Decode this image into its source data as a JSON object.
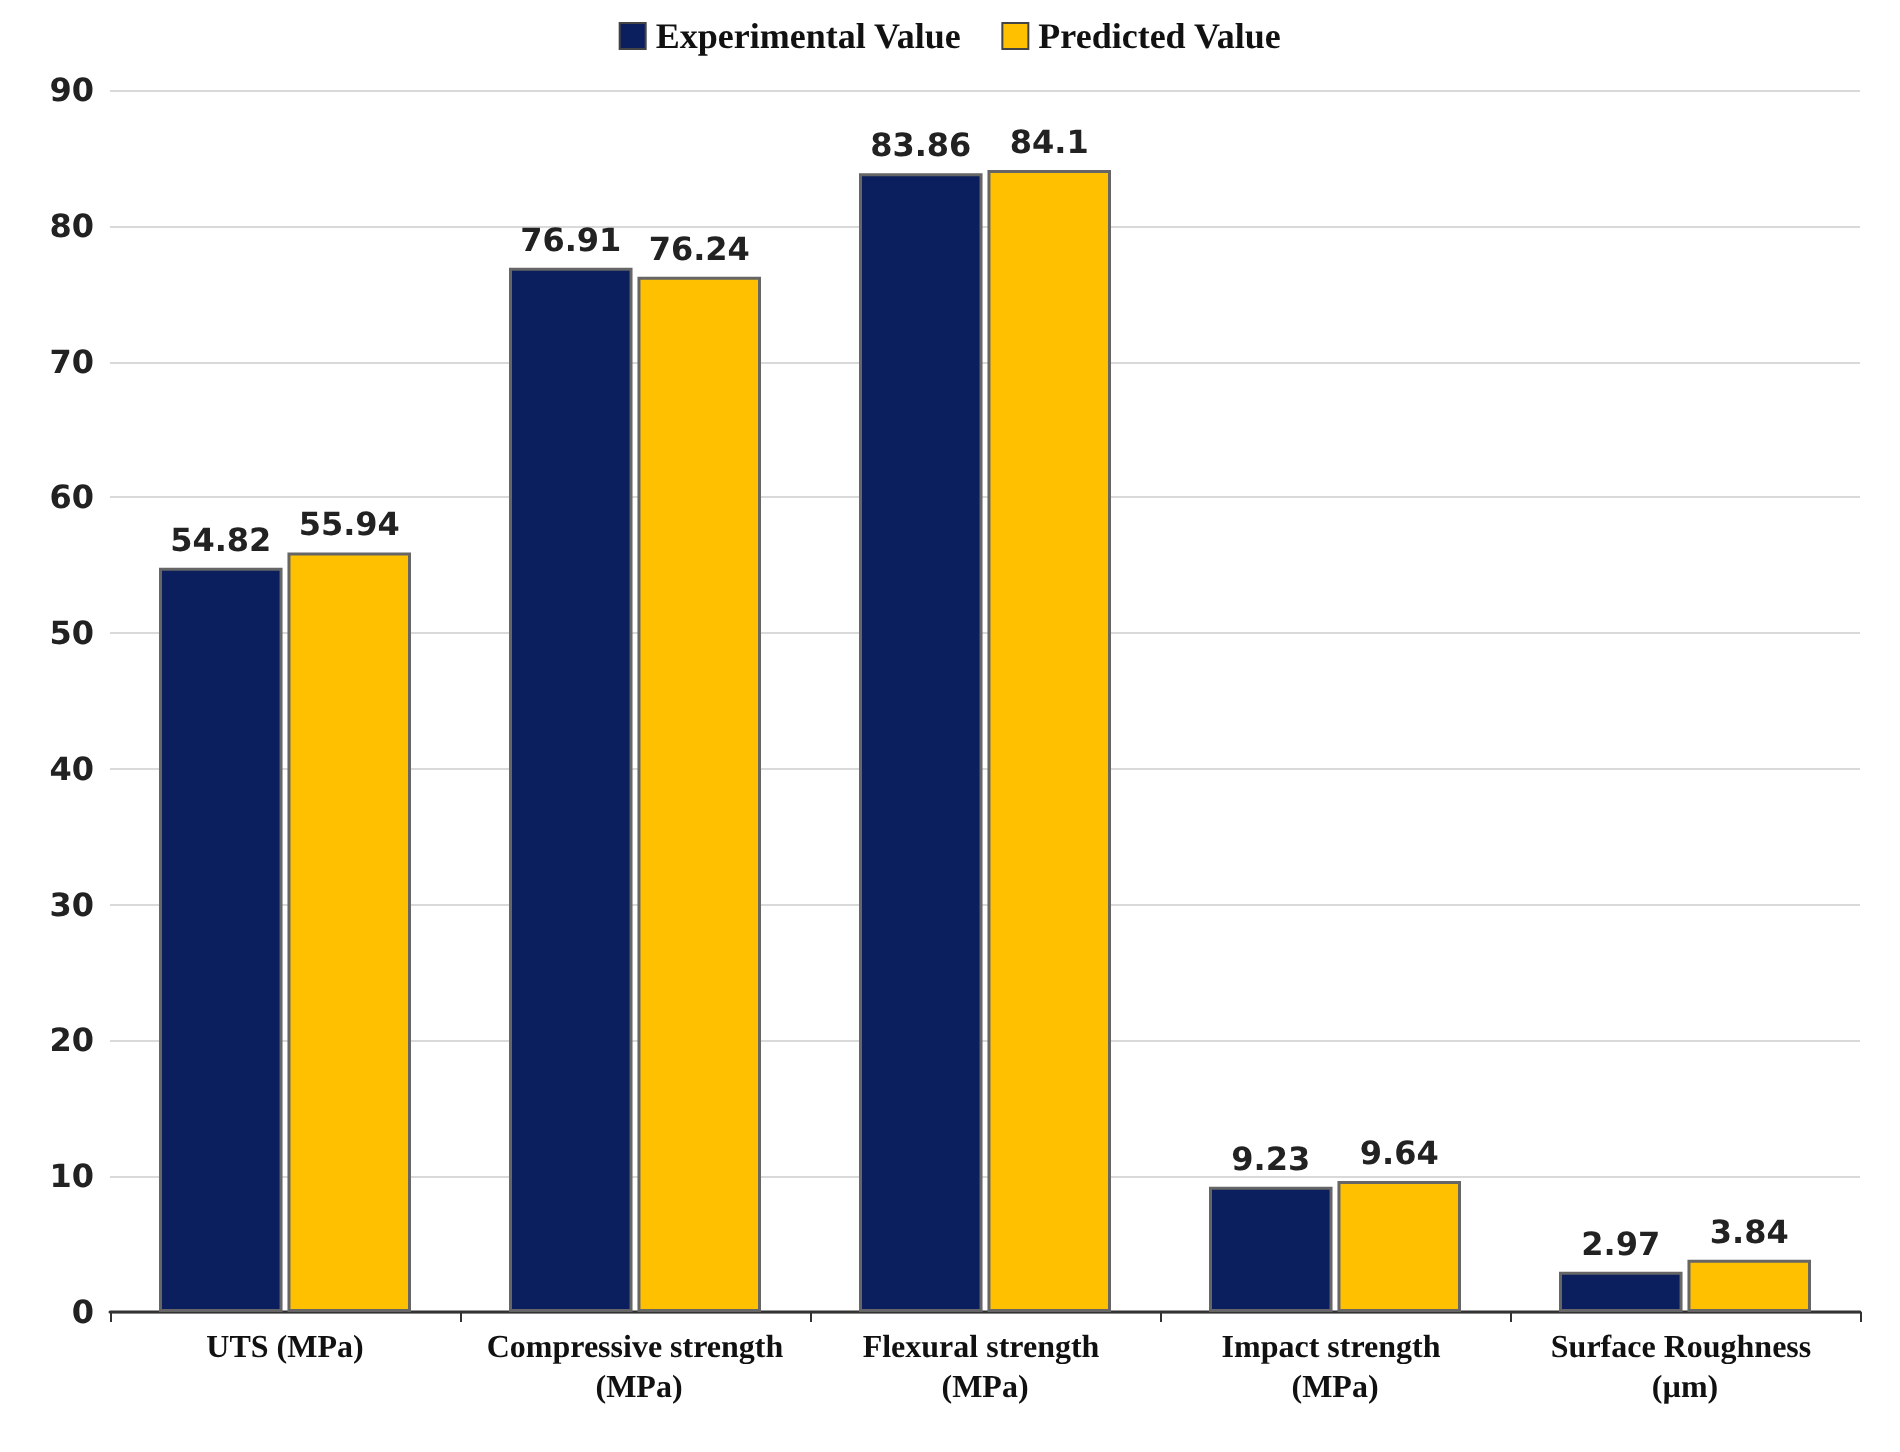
{
  "chart_data": {
    "type": "bar",
    "categories": [
      "UTS (MPa)",
      "Compressive strength (MPa)",
      "Flexural strength (MPa)",
      "Impact strength (MPa)",
      "Surface Roughness (µm)"
    ],
    "series": [
      {
        "name": "Experimental Value",
        "color": "#0b1f5e",
        "values": [
          54.82,
          76.91,
          83.86,
          9.23,
          2.97
        ]
      },
      {
        "name": "Predicted Value",
        "color": "#ffc000",
        "values": [
          55.94,
          76.24,
          84.1,
          9.64,
          3.84
        ]
      }
    ],
    "ylim": [
      0,
      90
    ],
    "yticks": [
      0,
      10,
      20,
      30,
      40,
      50,
      60,
      70,
      80,
      90
    ],
    "grid": "y",
    "legend": "top",
    "data_labels": true
  }
}
